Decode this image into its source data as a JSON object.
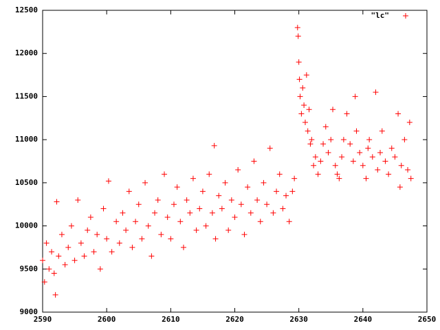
{
  "chart_data": {
    "type": "scatter",
    "xlim": [
      2590,
      2650
    ],
    "ylim": [
      9000,
      12500
    ],
    "xticks": [
      2590,
      2600,
      2610,
      2620,
      2630,
      2640,
      2650
    ],
    "yticks": [
      9000,
      9500,
      10000,
      10500,
      11000,
      11500,
      12000,
      12500
    ],
    "legend": "top-right",
    "series": [
      {
        "name": "\"lc\"",
        "color": "#ff0000",
        "x": [
          2590.0,
          2590.3,
          2590.6,
          2591.0,
          2591.4,
          2591.8,
          2592.0,
          2592.2,
          2592.5,
          2593.0,
          2593.5,
          2594.0,
          2594.5,
          2595.0,
          2595.5,
          2596.0,
          2596.5,
          2597.0,
          2597.5,
          2598.0,
          2598.5,
          2599.0,
          2599.5,
          2600.0,
          2600.3,
          2600.8,
          2601.5,
          2602.0,
          2602.5,
          2603.0,
          2603.5,
          2604.0,
          2604.5,
          2605.0,
          2605.5,
          2606.0,
          2606.5,
          2607.0,
          2607.5,
          2608.0,
          2608.5,
          2609.0,
          2609.5,
          2610.0,
          2610.5,
          2611.0,
          2611.5,
          2612.0,
          2612.5,
          2613.0,
          2613.5,
          2614.0,
          2614.5,
          2615.0,
          2615.5,
          2616.0,
          2616.5,
          2616.8,
          2617.0,
          2617.5,
          2618.0,
          2618.5,
          2619.0,
          2619.5,
          2620.0,
          2620.5,
          2621.0,
          2621.5,
          2622.0,
          2622.5,
          2623.0,
          2623.5,
          2624.0,
          2624.5,
          2625.0,
          2625.5,
          2626.0,
          2626.5,
          2627.0,
          2627.5,
          2628.0,
          2628.5,
          2629.0,
          2629.3,
          2629.8,
          2629.9,
          2630.0,
          2630.1,
          2630.2,
          2630.4,
          2630.6,
          2630.8,
          2631.0,
          2631.2,
          2631.4,
          2631.6,
          2631.8,
          2632.0,
          2632.3,
          2632.6,
          2633.0,
          2633.4,
          2633.8,
          2634.2,
          2634.6,
          2635.0,
          2635.3,
          2635.7,
          2636.0,
          2636.3,
          2636.7,
          2637.0,
          2637.5,
          2638.0,
          2638.5,
          2638.8,
          2639.0,
          2639.5,
          2640.0,
          2640.5,
          2640.8,
          2641.0,
          2641.5,
          2642.0,
          2642.3,
          2642.7,
          2643.0,
          2643.5,
          2644.0,
          2644.5,
          2645.0,
          2645.5,
          2645.8,
          2646.0,
          2646.5,
          2647.0,
          2647.3,
          2647.5
        ],
        "values": [
          9600,
          9350,
          9800,
          9500,
          9700,
          9450,
          9200,
          10280,
          9650,
          9900,
          9550,
          9750,
          10000,
          9600,
          10300,
          9800,
          9650,
          9950,
          10100,
          9700,
          9900,
          9500,
          10200,
          9850,
          10520,
          9700,
          10050,
          9800,
          10150,
          9950,
          10400,
          9750,
          10050,
          10250,
          9850,
          10500,
          10000,
          9650,
          10150,
          10300,
          9900,
          10600,
          10100,
          9850,
          10250,
          10450,
          10050,
          9750,
          10300,
          10150,
          10550,
          9950,
          10200,
          10400,
          10000,
          10600,
          10150,
          10930,
          9850,
          10350,
          10200,
          10500,
          9950,
          10300,
          10100,
          10650,
          10250,
          9900,
          10450,
          10150,
          10750,
          10300,
          10050,
          10500,
          10250,
          10900,
          10150,
          10400,
          10600,
          10200,
          10350,
          10050,
          10400,
          10550,
          12300,
          12200,
          11900,
          11700,
          11500,
          11300,
          11600,
          11400,
          11200,
          11750,
          11100,
          11350,
          10950,
          11000,
          10700,
          10800,
          10600,
          10750,
          10950,
          11150,
          10850,
          11000,
          11350,
          10700,
          10600,
          10550,
          10800,
          11000,
          11300,
          10950,
          10750,
          11500,
          11100,
          10850,
          10700,
          10550,
          10900,
          11000,
          10800,
          11550,
          10650,
          10850,
          11100,
          10750,
          10600,
          10900,
          10800,
          11300,
          10450,
          10700,
          11000,
          10650,
          11200,
          10550
        ]
      }
    ]
  }
}
